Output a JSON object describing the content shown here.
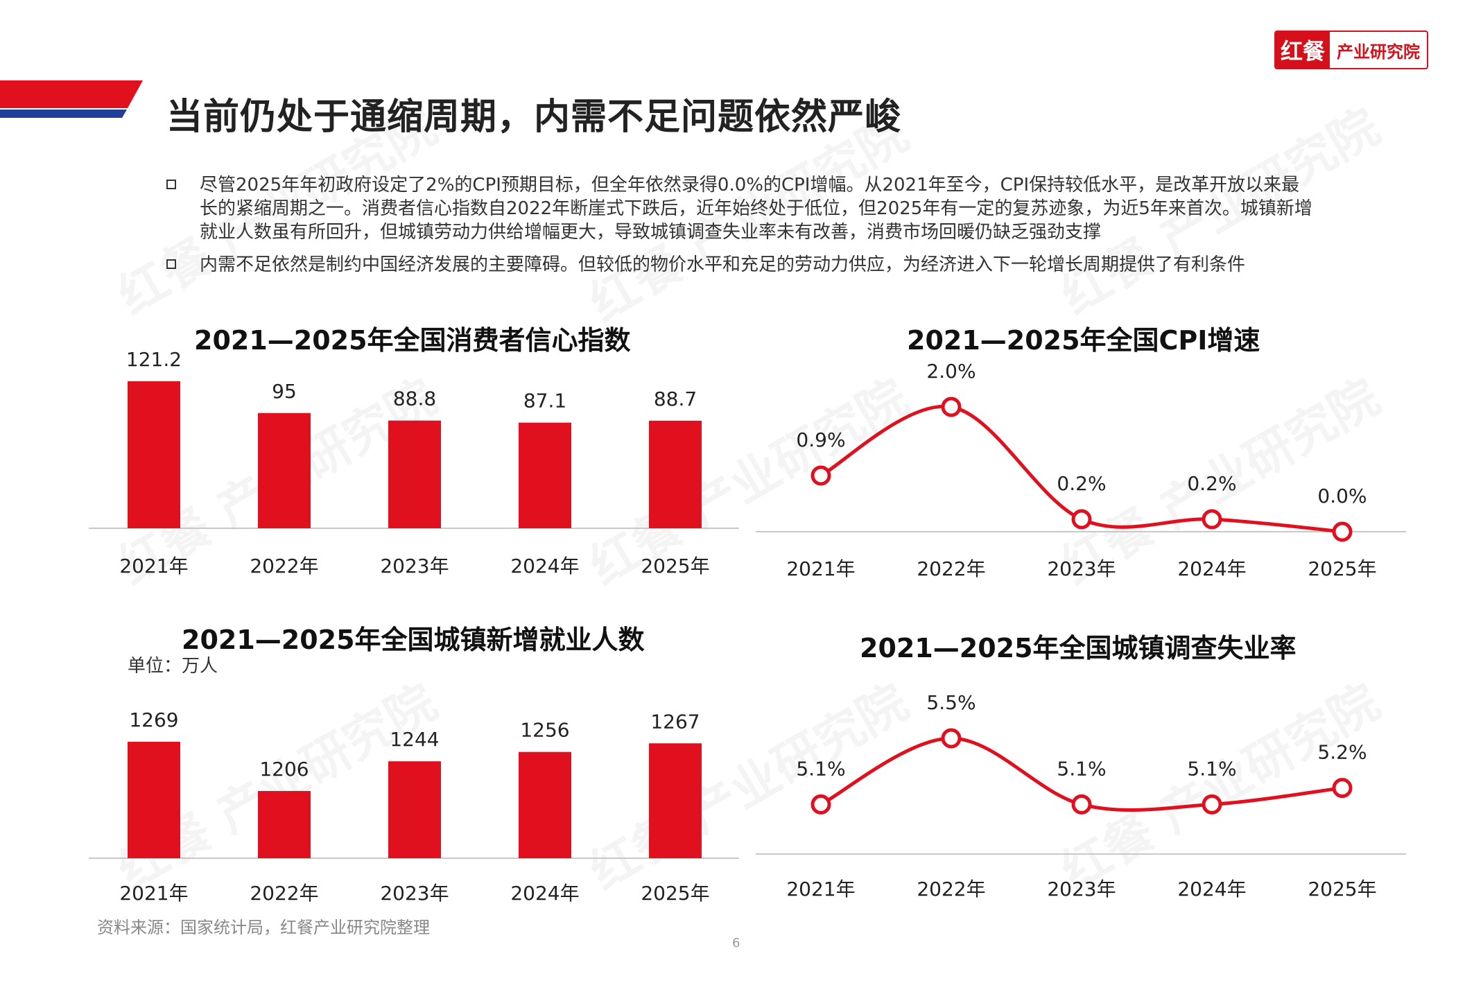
{
  "header": {
    "logo_mark": "红餐",
    "logo_text": "产业研究院",
    "title": "当前仍处于通缩周期，内需不足问题依然严峻"
  },
  "bullets": [
    "尽管2025年年初政府设定了2%的CPI预期目标，但全年依然录得0.0%的CPI增幅。从2021年至今，CPI保持较低水平，是改革开放以来最长的紧缩周期之一。消费者信心指数自2022年断崖式下跌后，近年始终处于低位，但2025年有一定的复苏迹象，为近5年来首次。城镇新增就业人数虽有所回升，但城镇劳动力供给增幅更大，导致城镇调查失业率未有改善，消费市场回暖仍缺乏强劲支撑",
    "内需不足依然是制约中国经济发展的主要障碍。但较低的物价水平和充足的劳动力供应，为经济进入下一轮增长周期提供了有利条件"
  ],
  "watermark": "红餐 产业研究院",
  "colors": {
    "accent": "#e0101e",
    "blue": "#1f3f9a"
  },
  "chart_data": [
    {
      "type": "bar",
      "title": "2021—2025年全国消费者信心指数",
      "categories": [
        "2021年",
        "2022年",
        "2023年",
        "2024年",
        "2025年"
      ],
      "values": [
        121.2,
        95,
        88.8,
        87.1,
        88.7
      ],
      "labels": [
        "121.2",
        "95",
        "88.8",
        "87.1",
        "88.7"
      ],
      "ylim": [
        0,
        121.2
      ]
    },
    {
      "type": "line",
      "title": "2021—2025年全国CPI增速",
      "categories": [
        "2021年",
        "2022年",
        "2023年",
        "2024年",
        "2025年"
      ],
      "values": [
        0.9,
        2.0,
        0.2,
        0.2,
        0.0
      ],
      "labels": [
        "0.9%",
        "2.0%",
        "0.2%",
        "0.2%",
        "0.0%"
      ],
      "ylim": [
        0,
        2.0
      ]
    },
    {
      "type": "bar",
      "title": "2021—2025年全国城镇新增就业人数",
      "unit": "单位：万人",
      "categories": [
        "2021年",
        "2022年",
        "2023年",
        "2024年",
        "2025年"
      ],
      "values": [
        1269,
        1206,
        1244,
        1256,
        1267
      ],
      "labels": [
        "1269",
        "1206",
        "1244",
        "1256",
        "1267"
      ],
      "ylim": [
        1120,
        1269
      ]
    },
    {
      "type": "line",
      "title": "2021—2025年全国城镇调查失业率",
      "categories": [
        "2021年",
        "2022年",
        "2023年",
        "2024年",
        "2025年"
      ],
      "values": [
        5.1,
        5.5,
        5.1,
        5.1,
        5.2
      ],
      "labels": [
        "5.1%",
        "5.5%",
        "5.1%",
        "5.1%",
        "5.2%"
      ],
      "ylim": [
        4.8,
        5.5
      ]
    }
  ],
  "footer": {
    "source": "资料来源：国家统计局，红餐产业研究院整理",
    "page": "6"
  }
}
